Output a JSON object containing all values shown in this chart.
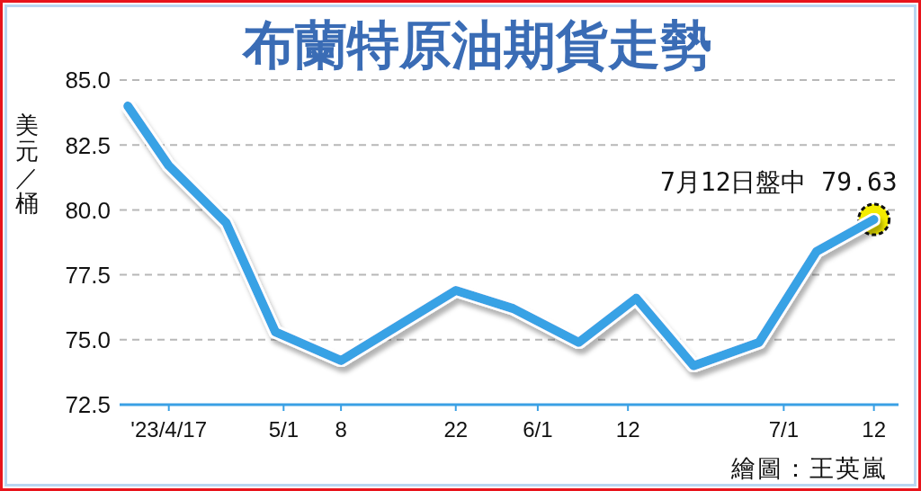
{
  "chart_data": {
    "type": "line",
    "title": "布蘭特原油期貨走勢",
    "ylabel": "美元／桶",
    "x": [
      "2023-04-12",
      "2023-04-17",
      "2023-04-24",
      "2023-04-30",
      "2023-05-08",
      "2023-05-22",
      "2023-05-29",
      "2023-06-06",
      "2023-06-13",
      "2023-06-20",
      "2023-06-28",
      "2023-07-05",
      "2023-07-12"
    ],
    "series": [
      {
        "type": "scatter",
        "marker": "circle",
        "color": "#f4ec00",
        "x": [
          "2023-07-12"
        ],
        "values": [
          79.63
        ]
      },
      {
        "color": "#39a2e5",
        "values": [
          84.0,
          81.7,
          79.5,
          75.3,
          74.2,
          76.9,
          76.2,
          74.9,
          76.6,
          74.0,
          74.9,
          78.4,
          79.63
        ]
      }
    ],
    "xlim": [
      "2023-04-11",
      "2023-07-15"
    ],
    "xticks": [
      {
        "value": "2023-04-17",
        "label": "'23/4/17"
      },
      {
        "value": "2023-05-01",
        "label": "5/1"
      },
      {
        "value": "2023-05-08",
        "label": "8"
      },
      {
        "value": "2023-05-22",
        "label": "22"
      },
      {
        "value": "2023-06-01",
        "label": "6/1"
      },
      {
        "value": "2023-06-12",
        "label": "12"
      },
      {
        "value": "2023-07-01",
        "label": "7/1"
      },
      {
        "value": "2023-07-12",
        "label": "12"
      }
    ],
    "ylim": [
      72.5,
      85
    ],
    "yticks": [
      72.5,
      {
        "value": 75,
        "label": "75.0"
      },
      77.5,
      {
        "value": 80,
        "label": "80.0"
      },
      82.5,
      {
        "value": 85,
        "label": "85.0"
      }
    ],
    "grid": "y",
    "line_style": "solid",
    "annotations": [
      {
        "text": "7月12日盤中 79.63",
        "x": "2023-07-12",
        "y": 79.63
      },
      "繪圖：王英嵐"
    ]
  }
}
